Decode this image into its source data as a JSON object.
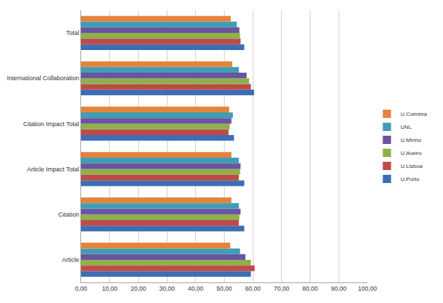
{
  "chart_data": {
    "type": "bar",
    "orientation": "horizontal",
    "categories": [
      "Article",
      "Citation",
      "Article Impact Total",
      "Citation Impact Total",
      "International Collaboration",
      "Total"
    ],
    "series": [
      {
        "name": "U.Porto",
        "color": "#3d6eb4",
        "values": [
          59.3,
          57.0,
          57.0,
          53.4,
          60.4,
          57.0
        ]
      },
      {
        "name": "U.Lisboa",
        "color": "#be4b48",
        "values": [
          60.6,
          55.1,
          55.1,
          51.5,
          59.3,
          55.7
        ]
      },
      {
        "name": "U.Aveiro",
        "color": "#8fb04c",
        "values": [
          59.3,
          55.3,
          55.5,
          51.9,
          58.7,
          55.5
        ]
      },
      {
        "name": "U.Minho",
        "color": "#6b54a0",
        "values": [
          57.4,
          55.7,
          55.7,
          52.5,
          57.8,
          55.3
        ]
      },
      {
        "name": "UNL",
        "color": "#3f9db5",
        "values": [
          55.5,
          55.1,
          55.1,
          53.0,
          55.1,
          54.4
        ]
      },
      {
        "name": "U.Coimbra",
        "color": "#e4843c",
        "values": [
          52.1,
          52.5,
          52.5,
          51.7,
          52.8,
          52.3
        ]
      }
    ],
    "xlim": [
      0,
      100
    ],
    "xticks": [
      {
        "value": 0,
        "label": "0,00"
      },
      {
        "value": 10,
        "label": "10,00"
      },
      {
        "value": 20,
        "label": "20,00"
      },
      {
        "value": 30,
        "label": "30,00"
      },
      {
        "value": 40,
        "label": "40,00"
      },
      {
        "value": 50,
        "label": "50,00"
      },
      {
        "value": 60,
        "label": "60,00"
      },
      {
        "value": 70,
        "label": "70,00"
      },
      {
        "value": 80,
        "label": "80,00"
      },
      {
        "value": 90,
        "label": "90,00"
      },
      {
        "value": 100,
        "label": "100,00"
      }
    ],
    "grid": true,
    "legend": "right"
  }
}
